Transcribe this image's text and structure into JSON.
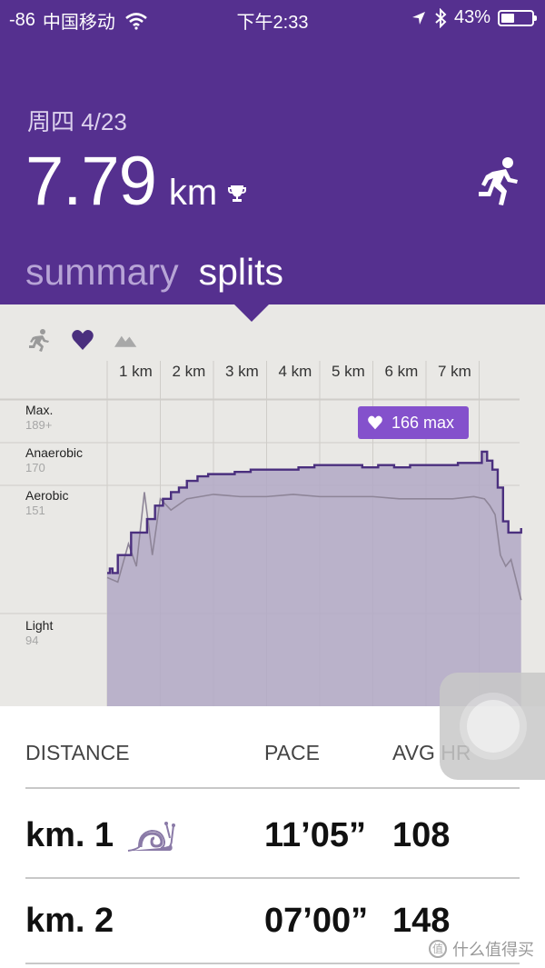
{
  "status_bar": {
    "signal": "-86",
    "carrier": "中国移动",
    "time": "下午2:33",
    "battery": "43%",
    "battery_level": 0.43
  },
  "workout": {
    "date": "周四 4/23",
    "distance": "7.79",
    "unit": "km"
  },
  "tabs": [
    {
      "label": "summary",
      "active": false
    },
    {
      "label": "splits",
      "active": true
    }
  ],
  "chart_data": {
    "type": "area",
    "xlabel": "",
    "ylabel": "",
    "km_labels": [
      "1 km",
      "2 km",
      "3 km",
      "4 km",
      "5 km",
      "6 km",
      "7 km"
    ],
    "zones": [
      {
        "name": "Max.",
        "bpm": "189+"
      },
      {
        "name": "Anaerobic",
        "bpm": "170"
      },
      {
        "name": "Aerobic",
        "bpm": "151"
      },
      {
        "name": "Light",
        "bpm": "94"
      }
    ],
    "badge": "166 max",
    "ylim": [
      60,
      195
    ],
    "series": [
      {
        "kind": "max-hr",
        "x": [
          0,
          0.05,
          0.1,
          0.2,
          0.3,
          0.45,
          0.6,
          0.75,
          0.9,
          1.05,
          1.2,
          1.35,
          1.5,
          1.7,
          1.9,
          2.1,
          2.4,
          2.7,
          3.0,
          3.3,
          3.6,
          3.9,
          4.2,
          4.5,
          4.8,
          5.1,
          5.4,
          5.7,
          6.0,
          6.3,
          6.6,
          6.9,
          7.05,
          7.15,
          7.25,
          7.35,
          7.45,
          7.55,
          7.65,
          7.79
        ],
        "values": [
          112,
          114,
          112,
          120,
          120,
          130,
          130,
          136,
          142,
          145,
          148,
          150,
          153,
          155,
          156,
          156,
          157,
          158,
          158,
          158,
          159,
          160,
          160,
          160,
          159,
          160,
          159,
          160,
          160,
          160,
          161,
          161,
          166,
          162,
          158,
          150,
          135,
          130,
          130,
          132
        ]
      },
      {
        "kind": "avg-hr",
        "x": [
          0,
          0.2,
          0.4,
          0.55,
          0.7,
          0.85,
          1.0,
          1.2,
          1.5,
          2.0,
          2.5,
          3.0,
          3.5,
          4.0,
          4.5,
          5.0,
          5.5,
          6.0,
          6.5,
          6.9,
          7.1,
          7.2,
          7.3,
          7.4,
          7.5,
          7.6,
          7.79
        ],
        "values": [
          110,
          108,
          125,
          115,
          148,
          120,
          145,
          140,
          145,
          147,
          146,
          146,
          147,
          146,
          146,
          146,
          145,
          145,
          145,
          146,
          145,
          142,
          138,
          120,
          115,
          118,
          100
        ]
      }
    ]
  },
  "splits_table": {
    "headers": {
      "distance": "DISTANCE",
      "pace": "PACE",
      "avg_hr": "AVG HR"
    },
    "rows": [
      {
        "km": "km. 1",
        "pace": "11’05”",
        "avg_hr": "108",
        "slow": true
      },
      {
        "km": "km. 2",
        "pace": "07’00”",
        "avg_hr": "148",
        "slow": false
      }
    ]
  },
  "watermark": "什么值得买",
  "colors": {
    "header": "#55308f",
    "badge": "#8451cc",
    "chart_fill": "#b2a8c5",
    "chart_line": "#4a2f7e",
    "chart_bg": "#e9e8e5"
  }
}
